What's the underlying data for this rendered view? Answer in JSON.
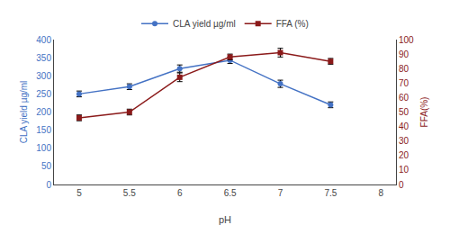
{
  "chart_data": {
    "type": "line",
    "xlabel": "pH",
    "ylabel": "CLA yield µg/ml",
    "y2label": "FFA(%)",
    "x": [
      5,
      5.5,
      6,
      6.5,
      7,
      7.5
    ],
    "series": [
      {
        "name": "CLA yield µg/ml",
        "color": "#4472C4",
        "marker": "circle",
        "line_style": "solid",
        "values": [
          250,
          270,
          320,
          343,
          278,
          220
        ],
        "errors": [
          8,
          8,
          10,
          9,
          10,
          8
        ]
      },
      {
        "name": "FFA (%)",
        "color": "#8B1A1A",
        "marker": "square",
        "line_style": "solid",
        "axis": "y2",
        "values": [
          46,
          50,
          74,
          88,
          91,
          85
        ],
        "errors": [
          2,
          2,
          3,
          2,
          3,
          2
        ]
      }
    ],
    "xlim": [
      4.75,
      8.15
    ],
    "xticks": [
      5,
      5.5,
      6,
      6.5,
      7,
      7.5,
      8
    ],
    "ylim": [
      0,
      400
    ],
    "yticks": [
      0,
      50,
      100,
      150,
      200,
      250,
      300,
      350,
      400
    ],
    "y2lim": [
      0,
      100
    ],
    "y2ticks": [
      0,
      10,
      20,
      30,
      40,
      50,
      60,
      70,
      80,
      90,
      100
    ],
    "grid": false,
    "legend": "top"
  }
}
